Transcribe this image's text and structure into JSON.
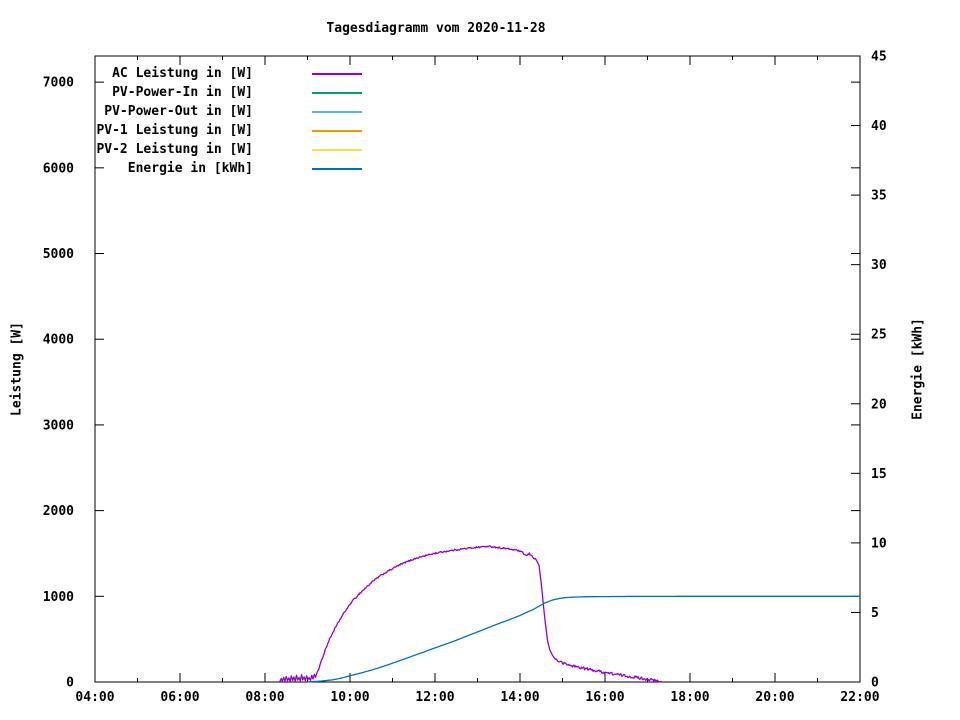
{
  "chart_data": {
    "type": "line",
    "title": "Tagesdiagramm vom 2020-11-28",
    "grid": false,
    "legend_position": "top-left-inside",
    "plot_border_color": "#000000",
    "background_color": "#ffffff",
    "x_axis": {
      "unit": "time",
      "min_hour": 4,
      "max_hour": 22,
      "major_ticks": [
        {
          "h": 4,
          "label": "04:00"
        },
        {
          "h": 6,
          "label": "06:00"
        },
        {
          "h": 8,
          "label": "08:00"
        },
        {
          "h": 10,
          "label": "10:00"
        },
        {
          "h": 12,
          "label": "12:00"
        },
        {
          "h": 14,
          "label": "14:00"
        },
        {
          "h": 16,
          "label": "16:00"
        },
        {
          "h": 18,
          "label": "18:00"
        },
        {
          "h": 20,
          "label": "20:00"
        },
        {
          "h": 22,
          "label": "22:00"
        }
      ],
      "minor_hours": [
        5,
        7,
        9,
        11,
        13,
        15,
        17,
        19,
        21
      ]
    },
    "y_axis": {
      "label": "Leistung [W]",
      "min": 0,
      "max": 7305,
      "ticks": [
        0,
        1000,
        2000,
        3000,
        4000,
        5000,
        6000,
        7000
      ]
    },
    "y2_axis": {
      "label": "Energie [kWh]",
      "min": 0,
      "max": 45,
      "ticks": [
        0,
        5,
        10,
        15,
        20,
        25,
        30,
        35,
        40,
        45
      ]
    },
    "series": [
      {
        "name": "AC Leistung in [W]",
        "color": "#9400d3",
        "axis": "y1",
        "noise": [
          {
            "from": 9.25,
            "to": 14.4,
            "amp": 9
          },
          {
            "from": 14.85,
            "to": 17.25,
            "amp": 16
          }
        ],
        "points": [
          [
            8.35,
            4
          ],
          [
            8.38,
            40
          ],
          [
            8.41,
            8
          ],
          [
            8.44,
            55
          ],
          [
            8.47,
            12
          ],
          [
            8.5,
            65
          ],
          [
            8.53,
            15
          ],
          [
            8.56,
            48
          ],
          [
            8.59,
            8
          ],
          [
            8.62,
            70
          ],
          [
            8.65,
            18
          ],
          [
            8.68,
            58
          ],
          [
            8.71,
            12
          ],
          [
            8.74,
            78
          ],
          [
            8.77,
            22
          ],
          [
            8.8,
            52
          ],
          [
            8.83,
            14
          ],
          [
            8.86,
            85
          ],
          [
            8.89,
            24
          ],
          [
            8.92,
            60
          ],
          [
            8.95,
            16
          ],
          [
            8.98,
            72
          ],
          [
            9.01,
            28
          ],
          [
            9.04,
            52
          ],
          [
            9.07,
            20
          ],
          [
            9.1,
            78
          ],
          [
            9.13,
            35
          ],
          [
            9.16,
            90
          ],
          [
            9.19,
            55
          ],
          [
            9.22,
            105
          ],
          [
            9.27,
            160
          ],
          [
            9.33,
            250
          ],
          [
            9.42,
            380
          ],
          [
            9.52,
            500
          ],
          [
            9.62,
            600
          ],
          [
            9.72,
            690
          ],
          [
            9.82,
            775
          ],
          [
            9.92,
            850
          ],
          [
            10.05,
            940
          ],
          [
            10.2,
            1020
          ],
          [
            10.35,
            1090
          ],
          [
            10.5,
            1160
          ],
          [
            10.7,
            1235
          ],
          [
            10.9,
            1295
          ],
          [
            11.1,
            1350
          ],
          [
            11.3,
            1395
          ],
          [
            11.5,
            1435
          ],
          [
            11.7,
            1465
          ],
          [
            11.9,
            1490
          ],
          [
            12.1,
            1512
          ],
          [
            12.3,
            1528
          ],
          [
            12.5,
            1543
          ],
          [
            12.7,
            1556
          ],
          [
            12.9,
            1567
          ],
          [
            13.05,
            1575
          ],
          [
            13.2,
            1582
          ],
          [
            13.35,
            1578
          ],
          [
            13.5,
            1568
          ],
          [
            13.65,
            1558
          ],
          [
            13.8,
            1548
          ],
          [
            13.95,
            1535
          ],
          [
            14.05,
            1512
          ],
          [
            14.15,
            1472
          ],
          [
            14.22,
            1498
          ],
          [
            14.3,
            1458
          ],
          [
            14.38,
            1428
          ],
          [
            14.45,
            1360
          ],
          [
            14.5,
            1150
          ],
          [
            14.55,
            900
          ],
          [
            14.6,
            670
          ],
          [
            14.65,
            480
          ],
          [
            14.7,
            375
          ],
          [
            14.76,
            315
          ],
          [
            14.82,
            272
          ],
          [
            14.9,
            245
          ],
          [
            15.0,
            222
          ],
          [
            15.1,
            205
          ],
          [
            15.2,
            192
          ],
          [
            15.35,
            176
          ],
          [
            15.5,
            160
          ],
          [
            15.7,
            140
          ],
          [
            15.9,
            122
          ],
          [
            16.1,
            103
          ],
          [
            16.3,
            86
          ],
          [
            16.5,
            70
          ],
          [
            16.7,
            55
          ],
          [
            16.9,
            40
          ],
          [
            17.05,
            28
          ],
          [
            17.15,
            18
          ],
          [
            17.25,
            8
          ],
          [
            17.34,
            2
          ]
        ]
      },
      {
        "name": "PV-Power-In in [W]",
        "color": "#009e73",
        "axis": "y1",
        "points": []
      },
      {
        "name": "PV-Power-Out in [W]",
        "color": "#56b4e9",
        "axis": "y1",
        "points": []
      },
      {
        "name": "PV-1 Leistung in [W]",
        "color": "#e69f00",
        "axis": "y1",
        "points": []
      },
      {
        "name": "PV-2 Leistung in [W]",
        "color": "#f0e442",
        "axis": "y1",
        "points": []
      },
      {
        "name": "Energie in [kWh]",
        "color": "#0072b2",
        "axis": "y2",
        "points": [
          [
            9.0,
            0.01
          ],
          [
            9.3,
            0.06
          ],
          [
            9.6,
            0.16
          ],
          [
            9.8,
            0.28
          ],
          [
            10.0,
            0.45
          ],
          [
            10.25,
            0.64
          ],
          [
            10.5,
            0.85
          ],
          [
            10.75,
            1.09
          ],
          [
            11.0,
            1.35
          ],
          [
            11.25,
            1.62
          ],
          [
            11.5,
            1.9
          ],
          [
            11.75,
            2.17
          ],
          [
            12.0,
            2.45
          ],
          [
            12.25,
            2.72
          ],
          [
            12.5,
            3.0
          ],
          [
            12.75,
            3.3
          ],
          [
            13.0,
            3.6
          ],
          [
            13.25,
            3.9
          ],
          [
            13.5,
            4.2
          ],
          [
            13.75,
            4.48
          ],
          [
            14.0,
            4.78
          ],
          [
            14.15,
            5.0
          ],
          [
            14.3,
            5.2
          ],
          [
            14.45,
            5.45
          ],
          [
            14.6,
            5.7
          ],
          [
            14.75,
            5.88
          ],
          [
            14.9,
            5.99
          ],
          [
            15.05,
            6.06
          ],
          [
            15.25,
            6.1
          ],
          [
            15.6,
            6.13
          ],
          [
            16.0,
            6.14
          ],
          [
            16.5,
            6.15
          ],
          [
            17.0,
            6.15
          ],
          [
            18.0,
            6.16
          ],
          [
            19.0,
            6.16
          ],
          [
            20.0,
            6.16
          ],
          [
            21.0,
            6.16
          ],
          [
            22.0,
            6.16
          ]
        ]
      }
    ]
  }
}
